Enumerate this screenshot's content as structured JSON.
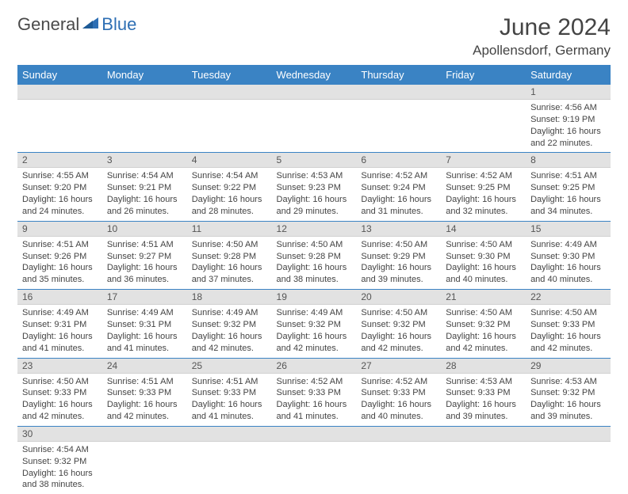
{
  "logo": {
    "text1": "General",
    "text2": "Blue"
  },
  "title": "June 2024",
  "location": "Apollensdorf, Germany",
  "colors": {
    "header_bg": "#3a83c4",
    "header_text": "#ffffff",
    "daynum_bg": "#e2e2e2",
    "cell_border": "#3a83c4",
    "body_text": "#444444",
    "logo_gray": "#4a4a4a",
    "logo_blue": "#2e6fb4"
  },
  "days_of_week": [
    "Sunday",
    "Monday",
    "Tuesday",
    "Wednesday",
    "Thursday",
    "Friday",
    "Saturday"
  ],
  "weeks": [
    [
      null,
      null,
      null,
      null,
      null,
      null,
      {
        "n": "1",
        "sunrise": "Sunrise: 4:56 AM",
        "sunset": "Sunset: 9:19 PM",
        "daylight": "Daylight: 16 hours and 22 minutes."
      }
    ],
    [
      {
        "n": "2",
        "sunrise": "Sunrise: 4:55 AM",
        "sunset": "Sunset: 9:20 PM",
        "daylight": "Daylight: 16 hours and 24 minutes."
      },
      {
        "n": "3",
        "sunrise": "Sunrise: 4:54 AM",
        "sunset": "Sunset: 9:21 PM",
        "daylight": "Daylight: 16 hours and 26 minutes."
      },
      {
        "n": "4",
        "sunrise": "Sunrise: 4:54 AM",
        "sunset": "Sunset: 9:22 PM",
        "daylight": "Daylight: 16 hours and 28 minutes."
      },
      {
        "n": "5",
        "sunrise": "Sunrise: 4:53 AM",
        "sunset": "Sunset: 9:23 PM",
        "daylight": "Daylight: 16 hours and 29 minutes."
      },
      {
        "n": "6",
        "sunrise": "Sunrise: 4:52 AM",
        "sunset": "Sunset: 9:24 PM",
        "daylight": "Daylight: 16 hours and 31 minutes."
      },
      {
        "n": "7",
        "sunrise": "Sunrise: 4:52 AM",
        "sunset": "Sunset: 9:25 PM",
        "daylight": "Daylight: 16 hours and 32 minutes."
      },
      {
        "n": "8",
        "sunrise": "Sunrise: 4:51 AM",
        "sunset": "Sunset: 9:25 PM",
        "daylight": "Daylight: 16 hours and 34 minutes."
      }
    ],
    [
      {
        "n": "9",
        "sunrise": "Sunrise: 4:51 AM",
        "sunset": "Sunset: 9:26 PM",
        "daylight": "Daylight: 16 hours and 35 minutes."
      },
      {
        "n": "10",
        "sunrise": "Sunrise: 4:51 AM",
        "sunset": "Sunset: 9:27 PM",
        "daylight": "Daylight: 16 hours and 36 minutes."
      },
      {
        "n": "11",
        "sunrise": "Sunrise: 4:50 AM",
        "sunset": "Sunset: 9:28 PM",
        "daylight": "Daylight: 16 hours and 37 minutes."
      },
      {
        "n": "12",
        "sunrise": "Sunrise: 4:50 AM",
        "sunset": "Sunset: 9:28 PM",
        "daylight": "Daylight: 16 hours and 38 minutes."
      },
      {
        "n": "13",
        "sunrise": "Sunrise: 4:50 AM",
        "sunset": "Sunset: 9:29 PM",
        "daylight": "Daylight: 16 hours and 39 minutes."
      },
      {
        "n": "14",
        "sunrise": "Sunrise: 4:50 AM",
        "sunset": "Sunset: 9:30 PM",
        "daylight": "Daylight: 16 hours and 40 minutes."
      },
      {
        "n": "15",
        "sunrise": "Sunrise: 4:49 AM",
        "sunset": "Sunset: 9:30 PM",
        "daylight": "Daylight: 16 hours and 40 minutes."
      }
    ],
    [
      {
        "n": "16",
        "sunrise": "Sunrise: 4:49 AM",
        "sunset": "Sunset: 9:31 PM",
        "daylight": "Daylight: 16 hours and 41 minutes."
      },
      {
        "n": "17",
        "sunrise": "Sunrise: 4:49 AM",
        "sunset": "Sunset: 9:31 PM",
        "daylight": "Daylight: 16 hours and 41 minutes."
      },
      {
        "n": "18",
        "sunrise": "Sunrise: 4:49 AM",
        "sunset": "Sunset: 9:32 PM",
        "daylight": "Daylight: 16 hours and 42 minutes."
      },
      {
        "n": "19",
        "sunrise": "Sunrise: 4:49 AM",
        "sunset": "Sunset: 9:32 PM",
        "daylight": "Daylight: 16 hours and 42 minutes."
      },
      {
        "n": "20",
        "sunrise": "Sunrise: 4:50 AM",
        "sunset": "Sunset: 9:32 PM",
        "daylight": "Daylight: 16 hours and 42 minutes."
      },
      {
        "n": "21",
        "sunrise": "Sunrise: 4:50 AM",
        "sunset": "Sunset: 9:32 PM",
        "daylight": "Daylight: 16 hours and 42 minutes."
      },
      {
        "n": "22",
        "sunrise": "Sunrise: 4:50 AM",
        "sunset": "Sunset: 9:33 PM",
        "daylight": "Daylight: 16 hours and 42 minutes."
      }
    ],
    [
      {
        "n": "23",
        "sunrise": "Sunrise: 4:50 AM",
        "sunset": "Sunset: 9:33 PM",
        "daylight": "Daylight: 16 hours and 42 minutes."
      },
      {
        "n": "24",
        "sunrise": "Sunrise: 4:51 AM",
        "sunset": "Sunset: 9:33 PM",
        "daylight": "Daylight: 16 hours and 42 minutes."
      },
      {
        "n": "25",
        "sunrise": "Sunrise: 4:51 AM",
        "sunset": "Sunset: 9:33 PM",
        "daylight": "Daylight: 16 hours and 41 minutes."
      },
      {
        "n": "26",
        "sunrise": "Sunrise: 4:52 AM",
        "sunset": "Sunset: 9:33 PM",
        "daylight": "Daylight: 16 hours and 41 minutes."
      },
      {
        "n": "27",
        "sunrise": "Sunrise: 4:52 AM",
        "sunset": "Sunset: 9:33 PM",
        "daylight": "Daylight: 16 hours and 40 minutes."
      },
      {
        "n": "28",
        "sunrise": "Sunrise: 4:53 AM",
        "sunset": "Sunset: 9:33 PM",
        "daylight": "Daylight: 16 hours and 39 minutes."
      },
      {
        "n": "29",
        "sunrise": "Sunrise: 4:53 AM",
        "sunset": "Sunset: 9:32 PM",
        "daylight": "Daylight: 16 hours and 39 minutes."
      }
    ],
    [
      {
        "n": "30",
        "sunrise": "Sunrise: 4:54 AM",
        "sunset": "Sunset: 9:32 PM",
        "daylight": "Daylight: 16 hours and 38 minutes."
      },
      null,
      null,
      null,
      null,
      null,
      null
    ]
  ]
}
